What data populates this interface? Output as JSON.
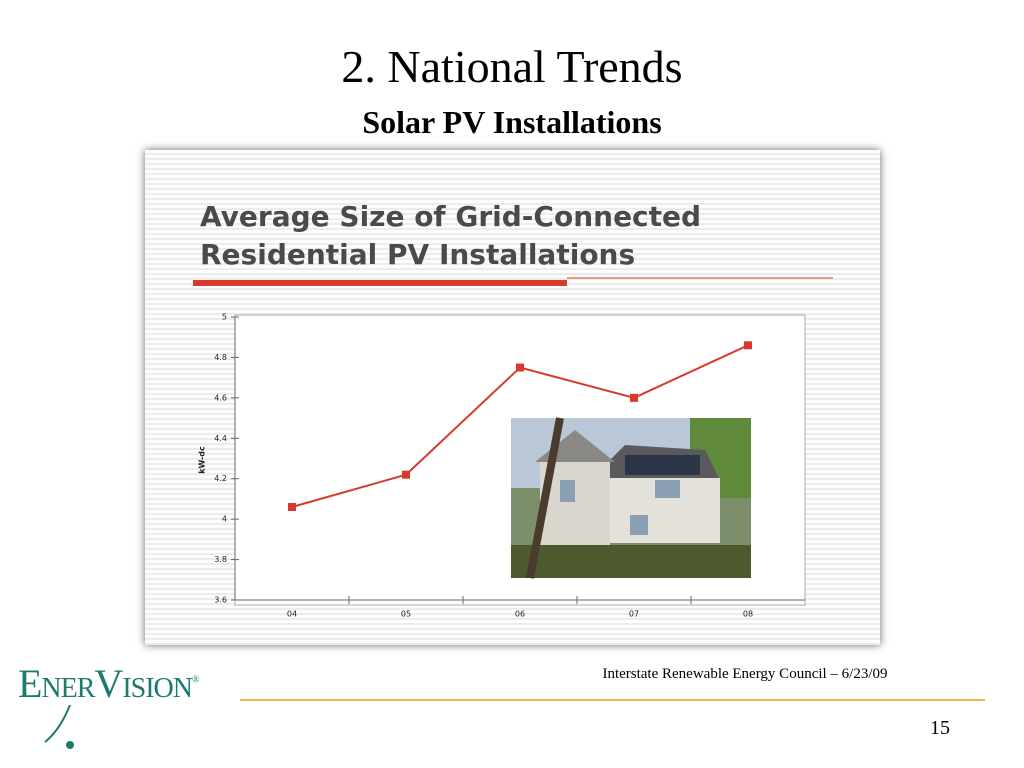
{
  "slide": {
    "title": "2.  National Trends",
    "subtitle": "Solar PV Installations",
    "footer": "Interstate Renewable Energy Council – 6/23/09",
    "page_number": "15",
    "logo": "EnerVision",
    "logo_mark": "®"
  },
  "chart_data": {
    "type": "line",
    "title": "Average Size of Grid-Connected Residential PV Installations",
    "y_label": "kW-dc",
    "categories": [
      "04",
      "05",
      "06",
      "07",
      "08"
    ],
    "series": [
      {
        "name": "kW-dc",
        "color": "#d63a2c",
        "values": [
          4.06,
          4.22,
          4.75,
          4.6,
          4.86
        ]
      }
    ],
    "ylim": [
      3.6,
      5
    ],
    "yticks": [
      3.6,
      3.8,
      4,
      4.2,
      4.4,
      4.6,
      4.8,
      5
    ],
    "grid": false
  }
}
